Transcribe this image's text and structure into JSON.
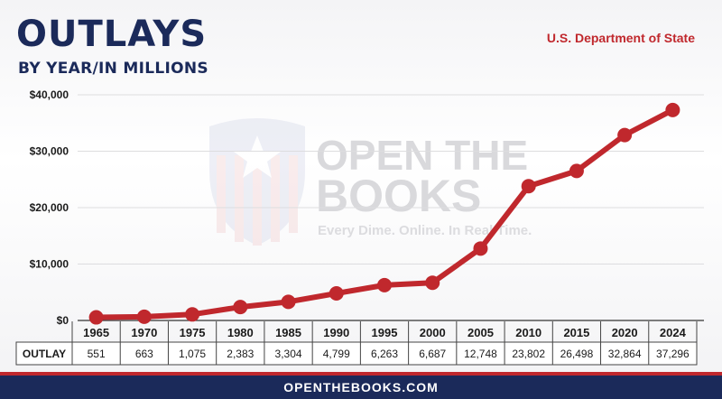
{
  "header": {
    "title": "OUTLAYS",
    "subtitle": "BY YEAR/IN MILLIONS",
    "agency": "U.S. Department of State"
  },
  "watermark": {
    "line1": "OPEN THE",
    "line2": "BOOKS",
    "tagline": "Every Dime. Online. In Real Time."
  },
  "table": {
    "row_label": "OUTLAY"
  },
  "footer": {
    "text": "OPENTHEBOOKS.COM"
  },
  "colors": {
    "line": "#c0282d",
    "navy": "#1b2a5a",
    "accent": "#c0282d"
  },
  "chart_data": {
    "type": "line",
    "title": "OUTLAYS",
    "subtitle": "BY YEAR/IN MILLIONS",
    "x": [
      "1965",
      "1970",
      "1975",
      "1980",
      "1985",
      "1990",
      "1995",
      "2000",
      "2005",
      "2010",
      "2015",
      "2020",
      "2024"
    ],
    "series": [
      {
        "values": [
          551,
          663,
          1075,
          2383,
          3304,
          4799,
          6263,
          6687,
          12748,
          23802,
          26498,
          32864,
          37296
        ]
      }
    ],
    "value_labels": [
      "551",
      "663",
      "1,075",
      "2,383",
      "3,304",
      "4,799",
      "6,263",
      "6,687",
      "12,748",
      "23,802",
      "26,498",
      "32,864",
      "37,296"
    ],
    "yticks": [
      "$0",
      "$10,000",
      "$20,000",
      "$30,000",
      "$40,000"
    ],
    "ylim": [
      0,
      40000
    ],
    "grid": true,
    "legend": "none"
  }
}
